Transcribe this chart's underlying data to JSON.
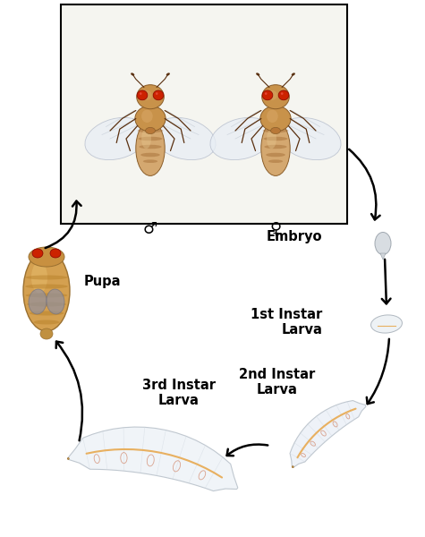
{
  "bg_color": "#ffffff",
  "labels": {
    "embryo": "Embryo",
    "instar1": "1st Instar\nLarva",
    "instar2": "2nd Instar\nLarva",
    "instar3": "3rd Instar\nLarva",
    "pupa": "Pupa",
    "male": "♂",
    "female": "♀"
  },
  "box_edge": "#000000",
  "text_color": "#000000",
  "label_fontsize": 10.5,
  "symbol_fontsize": 13,
  "fly_body_color": "#c8924a",
  "fly_body_dark": "#8b5e2a",
  "fly_eye_color": "#cc2200",
  "fly_wing_color": "#e8eef5",
  "fly_stripe_color": "#a06830",
  "fly_leg_color": "#5a3010",
  "pupa_body": "#d4a050",
  "pupa_stripe": "#b07820",
  "pupa_wing_bg": "#b0b8c0",
  "larva_body": "#f0f4f8",
  "larva_gut": "#e8b060",
  "larva_gut2": "#d08060",
  "embryo_color": "#d8dde0",
  "arrow_color": "#000000",
  "arrow_lw": 1.8
}
